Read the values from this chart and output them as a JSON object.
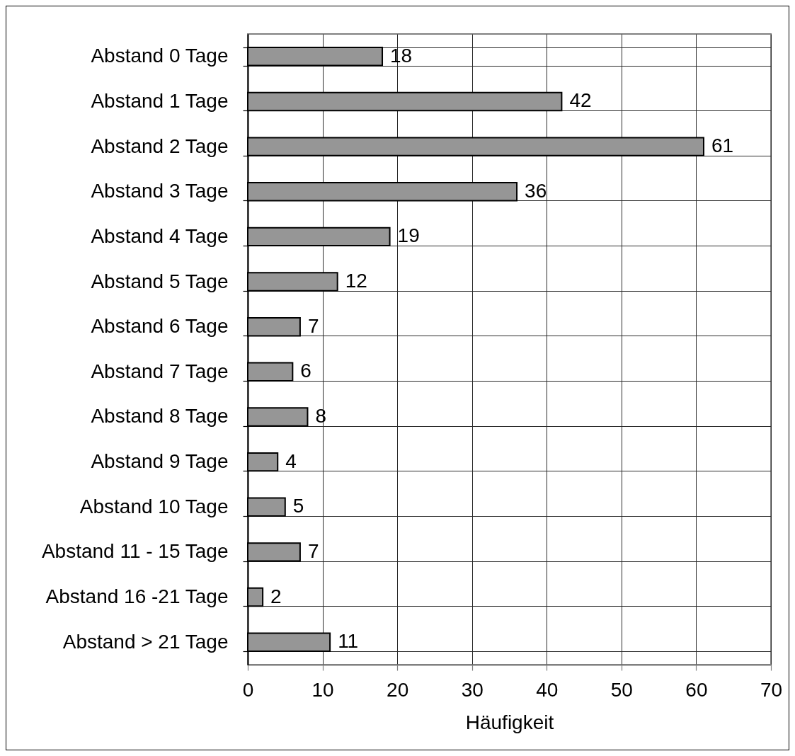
{
  "chart_data": {
    "type": "bar",
    "orientation": "horizontal",
    "categories": [
      "Abstand 0 Tage",
      "Abstand 1 Tage",
      "Abstand 2 Tage",
      "Abstand 3 Tage",
      "Abstand 4 Tage",
      "Abstand 5 Tage",
      "Abstand 6 Tage",
      "Abstand 7 Tage",
      "Abstand 8 Tage",
      "Abstand 9 Tage",
      "Abstand 10 Tage",
      "Abstand 11 - 15 Tage",
      "Abstand 16 -21 Tage",
      "Abstand > 21 Tage"
    ],
    "values": [
      18,
      42,
      61,
      36,
      19,
      12,
      7,
      6,
      8,
      4,
      5,
      7,
      2,
      11
    ],
    "color": "#969696",
    "xlim": [
      0,
      70
    ],
    "xticks": [
      0,
      10,
      20,
      30,
      40,
      50,
      60,
      70
    ],
    "xlabel": "Häufigkeit",
    "grid": true,
    "data_labels": true
  }
}
